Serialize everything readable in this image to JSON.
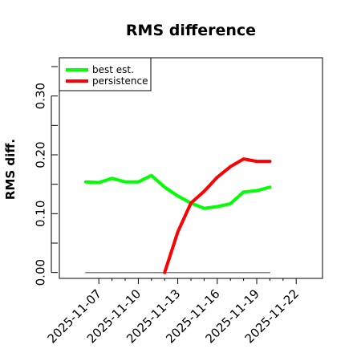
{
  "chart_data": {
    "type": "line",
    "title": "RMS difference",
    "xlabel": "",
    "ylabel": "RMS diff.",
    "x_ticks": [
      "2025-11-07",
      "2025-11-10",
      "2025-11-13",
      "2025-11-16",
      "2025-11-19",
      "2025-11-22"
    ],
    "y_ticks": [
      "0.00",
      "0.10",
      "0.20",
      "0.30"
    ],
    "xlim": [
      "2025-11-04",
      "2025-11-24"
    ],
    "ylim": [
      -0.01,
      0.365
    ],
    "legend_position": "top-left",
    "series": [
      {
        "name": "best est.",
        "color": "#00ff00",
        "x": [
          "2025-11-06",
          "2025-11-07",
          "2025-11-08",
          "2025-11-09",
          "2025-11-10",
          "2025-11-11",
          "2025-11-12",
          "2025-11-13",
          "2025-11-14",
          "2025-11-15",
          "2025-11-16",
          "2025-11-17",
          "2025-11-18",
          "2025-11-19",
          "2025-11-20"
        ],
        "y": [
          0.154,
          0.153,
          0.16,
          0.154,
          0.154,
          0.165,
          0.145,
          0.13,
          0.118,
          0.109,
          0.112,
          0.117,
          0.137,
          0.139,
          0.145
        ]
      },
      {
        "name": "persistence",
        "color": "#ff0000",
        "x": [
          "2025-11-12",
          "2025-11-13",
          "2025-11-14",
          "2025-11-15",
          "2025-11-16",
          "2025-11-17",
          "2025-11-18",
          "2025-11-19",
          "2025-11-20"
        ],
        "y": [
          0.0,
          0.069,
          0.118,
          0.138,
          0.162,
          0.18,
          0.193,
          0.189,
          0.189
        ]
      },
      {
        "name": "",
        "color": "#808080",
        "x": [
          "2025-11-06",
          "2025-11-20"
        ],
        "y": [
          0.0,
          0.0
        ]
      }
    ]
  }
}
